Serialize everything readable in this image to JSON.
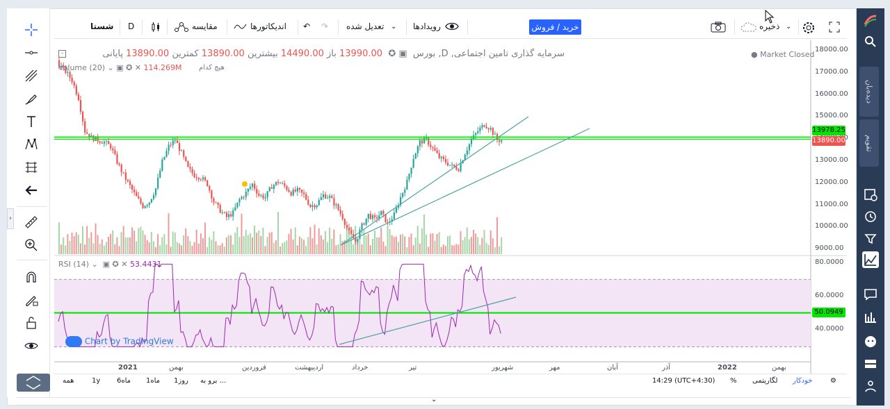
{
  "toolbar": {
    "symbol": "شستا",
    "interval": "D",
    "compare_label": "مقایسه",
    "indicators_label": "اندیکاتورها",
    "adjusted_label": "تعدیل شده",
    "events_label": "رویدادها",
    "buy_sell_label": "خرید / فروش",
    "save_label": "ذخیره"
  },
  "legend": {
    "title": "سرمایه گذاری تامین اجتماعی, D, بورس",
    "open_label": "باز",
    "open_value": "13990.00",
    "high_label": "بیشترین",
    "high_value": "14490.00",
    "low_label": "کمترین",
    "low_value": "13890.00",
    "close_label": "پایانی",
    "close_value": "13890.00",
    "market_status": "Market Closed",
    "volume_label": "Volume (20)",
    "volume_value": "114.269M",
    "volume_note": "هیچ کدام",
    "rsi_label": "RSI (14)",
    "rsi_value": "53.4431",
    "watermark": "Chart by TradingView"
  },
  "price_axis": {
    "labels": [
      "18000.00",
      "17000.00",
      "16000.00",
      "15000.00",
      "14000.00",
      "13000.00",
      "12000.00",
      "11000.00",
      "10000.00",
      "9000.00"
    ],
    "tag_line": "13978.25",
    "tag_price": "13890.00"
  },
  "rsi_axis": {
    "labels": [
      "80.0000",
      "60.0000",
      "40.0000"
    ],
    "tag": "50.0949"
  },
  "time_axis": {
    "labels": [
      "2021",
      "بهمن",
      "فروردین",
      "اردیبهشت",
      "خرداد",
      "تیر",
      "شهریور",
      "مهر",
      "آبان",
      "آذر",
      "2022",
      "بهمن"
    ]
  },
  "bottombar": {
    "ranges": [
      "همه",
      "1y",
      "6ماه",
      "1ماه",
      "1روز"
    ],
    "goto_label": "برو به ...",
    "time": "14:29 (UTC+4:30)",
    "percent": "%",
    "log": "لگاریتمی",
    "auto": "خودکار"
  },
  "right_panel": {
    "watchlist_tab": "دیده‌بان",
    "news_tab": "تقویم"
  },
  "colors": {
    "up": "#a5d6a7",
    "down": "#ef9a9a",
    "candle_up": "#26a69a",
    "candle_down": "#ef5350",
    "support": "#00e600",
    "trend": "#4aa3a0",
    "rsi": "#9c27b0",
    "rsi_band": "#f3e5f5"
  },
  "chart_data": {
    "type": "candlestick",
    "y_range": [
      9000,
      18000
    ],
    "close_series": [
      17300,
      17000,
      16600,
      15800,
      14300,
      14000,
      13900,
      13800,
      13600,
      12900,
      12300,
      11800,
      11300,
      10900,
      11100,
      11700,
      12900,
      13600,
      13900,
      13300,
      12600,
      12300,
      12200,
      11900,
      11100,
      10700,
      10400,
      10600,
      11200,
      11500,
      11900,
      11400,
      11300,
      11800,
      12000,
      11800,
      11500,
      11600,
      11400,
      10900,
      11000,
      11400,
      11300,
      10900,
      10400,
      9700,
      9300,
      10000,
      10500,
      10300,
      10600,
      10100,
      10500,
      11300,
      12000,
      13100,
      13800,
      13900,
      13500,
      13100,
      12900,
      12700,
      12600,
      13300,
      13900,
      14300,
      14600,
      14400,
      13890
    ],
    "support_price": 13978.25,
    "rsi_range": [
      20,
      80
    ],
    "rsi_support": 50.0949
  }
}
